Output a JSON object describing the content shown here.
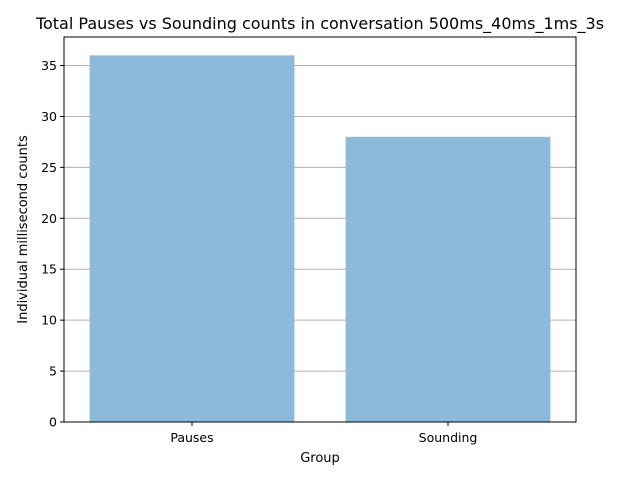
{
  "chart_data": {
    "type": "bar",
    "title": "Total Pauses vs Sounding counts in conversation 500ms_40ms_1ms_3s",
    "xlabel": "Group",
    "ylabel": "Individual millisecond counts",
    "categories": [
      "Pauses",
      "Sounding"
    ],
    "values": [
      36,
      28
    ],
    "ylim": [
      0,
      37.8
    ],
    "yticks": [
      0,
      5,
      10,
      15,
      20,
      25,
      30,
      35
    ],
    "grid": "horizontal",
    "bar_color": "#8db9da",
    "grid_color": "#b0b0b0"
  }
}
